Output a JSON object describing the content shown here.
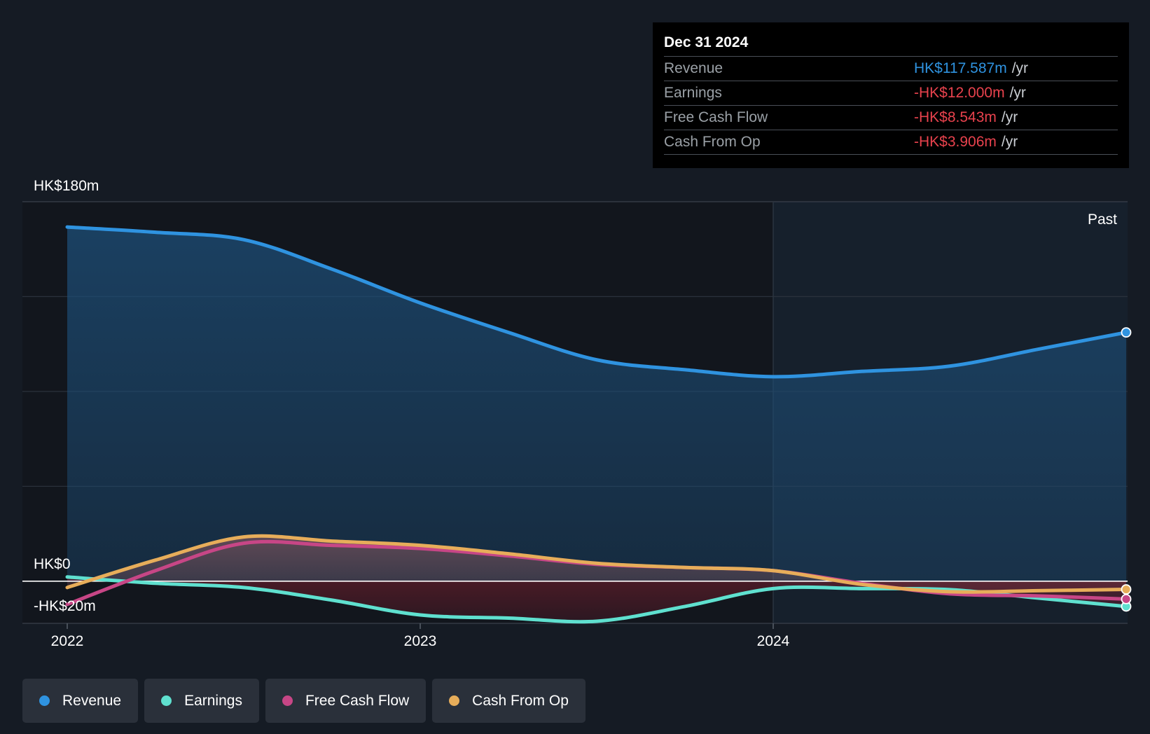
{
  "tooltip": {
    "date": "Dec 31 2024",
    "rows": [
      {
        "label": "Revenue",
        "value": "HK$117.587m",
        "unit": "/yr",
        "color": "#2f93e0"
      },
      {
        "label": "Earnings",
        "value": "-HK$12.000m",
        "unit": "/yr",
        "color": "#e8424d"
      },
      {
        "label": "Free Cash Flow",
        "value": "-HK$8.543m",
        "unit": "/yr",
        "color": "#e8424d"
      },
      {
        "label": "Cash From Op",
        "value": "-HK$3.906m",
        "unit": "/yr",
        "color": "#e8424d"
      }
    ]
  },
  "legend": [
    {
      "label": "Revenue",
      "color": "#2f93e0"
    },
    {
      "label": "Earnings",
      "color": "#5fe0cf"
    },
    {
      "label": "Free Cash Flow",
      "color": "#c74686"
    },
    {
      "label": "Cash From Op",
      "color": "#e7ad5a"
    }
  ],
  "chart_data": {
    "type": "line",
    "title": "",
    "past_label": "Past",
    "y_labels": [
      "HK$180m",
      "HK$0",
      "-HK$20m"
    ],
    "ylim": [
      -20,
      180
    ],
    "x_ticks": [
      {
        "label": "2022",
        "x": 2022.0
      },
      {
        "label": "2023",
        "x": 2023.0
      },
      {
        "label": "2024",
        "x": 2024.0
      }
    ],
    "xlim": [
      2021.87,
      2025.0
    ],
    "past_start": 2024.0,
    "series": [
      {
        "name": "Revenue",
        "color": "#2f93e0",
        "x": [
          2022.0,
          2022.25,
          2022.5,
          2022.75,
          2023.0,
          2023.25,
          2023.5,
          2023.75,
          2024.0,
          2024.25,
          2024.5,
          2024.75,
          2025.0
        ],
        "values": [
          168,
          165.5,
          162,
          148,
          132,
          118,
          105,
          100.3,
          97,
          99.5,
          102,
          110,
          118
        ]
      },
      {
        "name": "Earnings",
        "color": "#5fe0cf",
        "x": [
          2022.0,
          2022.25,
          2022.5,
          2022.75,
          2023.0,
          2023.25,
          2023.5,
          2023.75,
          2024.0,
          2024.25,
          2024.5,
          2024.75,
          2025.0
        ],
        "values": [
          2,
          -1,
          -3,
          -9,
          -16,
          -17.5,
          -19,
          -12,
          -3.5,
          -3.5,
          -4,
          -8,
          -12
        ]
      },
      {
        "name": "Free Cash Flow",
        "color": "#c74686",
        "x": [
          2022.0,
          2022.25,
          2022.5,
          2022.75,
          2023.0,
          2023.25,
          2023.5,
          2023.75,
          2024.0,
          2024.25,
          2024.5,
          2024.75,
          2025.0
        ],
        "values": [
          -11,
          5,
          18,
          17,
          15.5,
          12,
          8,
          6.5,
          5,
          -1,
          -6,
          -7,
          -8.5
        ]
      },
      {
        "name": "Cash From Op",
        "color": "#e7ad5a",
        "x": [
          2022.0,
          2022.25,
          2022.5,
          2022.75,
          2023.0,
          2023.25,
          2023.5,
          2023.75,
          2024.0,
          2024.25,
          2024.5,
          2024.75,
          2025.0
        ],
        "values": [
          -3,
          10,
          21,
          19,
          17,
          13,
          8.5,
          6.5,
          5,
          -1.5,
          -5,
          -4.5,
          -3.9
        ]
      }
    ]
  }
}
